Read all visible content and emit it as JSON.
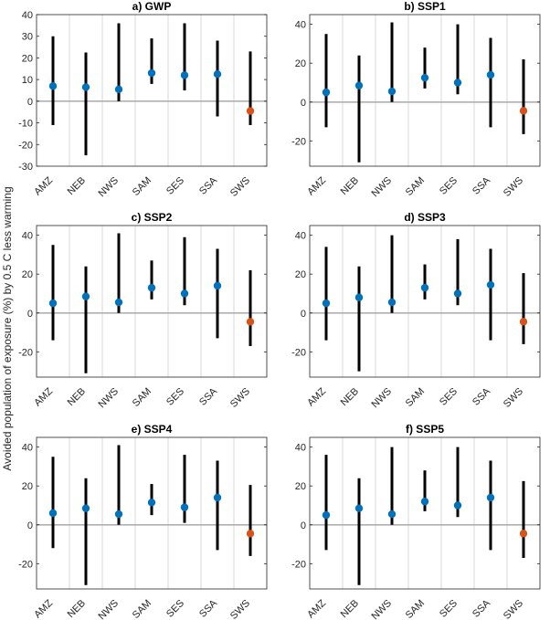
{
  "ylabel": "Avoided population of exposure (%) by 0.5 C less warming",
  "colors": {
    "point": "#0072BD",
    "highlight": "#D95319",
    "whisker": "#000000",
    "zero": "#B0B0B0",
    "grid": "#D9D9D9",
    "axis": "#262626"
  },
  "chart_data": [
    {
      "type": "errorbar",
      "title": "a) GWP",
      "categories": [
        "AMZ",
        "NEB",
        "NWS",
        "SAM",
        "SES",
        "SSA",
        "SWS"
      ],
      "values": [
        7,
        6.5,
        5.5,
        13,
        12,
        12.5,
        -4.5
      ],
      "lower": [
        -11,
        -25,
        0,
        8,
        5,
        -7,
        -11
      ],
      "upper": [
        30,
        22.5,
        36,
        29,
        36,
        28,
        23
      ],
      "ylim": [
        -30,
        40
      ],
      "yticks": [
        -30,
        -20,
        -10,
        0,
        10,
        20,
        30,
        40
      ]
    },
    {
      "type": "errorbar",
      "title": "b) SSP1",
      "categories": [
        "AMZ",
        "NEB",
        "NWS",
        "SAM",
        "SES",
        "SSA",
        "SWS"
      ],
      "values": [
        5,
        8.5,
        5.5,
        12.5,
        10,
        14,
        -4.5
      ],
      "lower": [
        -13,
        -31,
        0,
        7,
        4,
        -13,
        -16.5
      ],
      "upper": [
        35,
        24,
        41,
        28,
        40,
        33,
        22
      ],
      "ylim": [
        -33,
        45
      ],
      "yticks": [
        -20,
        0,
        20,
        40
      ]
    },
    {
      "type": "errorbar",
      "title": "c) SSP2",
      "categories": [
        "AMZ",
        "NEB",
        "NWS",
        "SAM",
        "SES",
        "SSA",
        "SWS"
      ],
      "values": [
        5,
        8.5,
        5.5,
        13,
        10,
        14,
        -4.5
      ],
      "lower": [
        -14,
        -31,
        0,
        7,
        4,
        -13,
        -17
      ],
      "upper": [
        35,
        24,
        41,
        27,
        39,
        33,
        22
      ],
      "ylim": [
        -33,
        45
      ],
      "yticks": [
        -20,
        0,
        20,
        40
      ]
    },
    {
      "type": "errorbar",
      "title": "d) SSP3",
      "categories": [
        "AMZ",
        "NEB",
        "NWS",
        "SAM",
        "SES",
        "SSA",
        "SWS"
      ],
      "values": [
        5,
        8,
        5.5,
        13,
        10,
        14.5,
        -4.5
      ],
      "lower": [
        -14,
        -30,
        0,
        7,
        4,
        -14,
        -16
      ],
      "upper": [
        34,
        24,
        40,
        25,
        38,
        33,
        20.5
      ],
      "ylim": [
        -33,
        45
      ],
      "yticks": [
        -20,
        0,
        20,
        40
      ]
    },
    {
      "type": "errorbar",
      "title": "e) SSP4",
      "categories": [
        "AMZ",
        "NEB",
        "NWS",
        "SAM",
        "SES",
        "SSA",
        "SWS"
      ],
      "values": [
        6,
        8.5,
        5.5,
        11.5,
        9,
        14,
        -4.5
      ],
      "lower": [
        -12,
        -31,
        0,
        5,
        1,
        -13,
        -16
      ],
      "upper": [
        35,
        24,
        41,
        21,
        36,
        33,
        20.5
      ],
      "ylim": [
        -33,
        45
      ],
      "yticks": [
        -20,
        0,
        20,
        40
      ]
    },
    {
      "type": "errorbar",
      "title": "f) SSP5",
      "categories": [
        "AMZ",
        "NEB",
        "NWS",
        "SAM",
        "SES",
        "SSA",
        "SWS"
      ],
      "values": [
        5,
        8.5,
        5.5,
        12,
        10,
        14,
        -4.5
      ],
      "lower": [
        -13,
        -31,
        0,
        7,
        4,
        -13,
        -17
      ],
      "upper": [
        36,
        24,
        40,
        28,
        40,
        33,
        22.5
      ],
      "ylim": [
        -33,
        45
      ],
      "yticks": [
        -20,
        0,
        20,
        40
      ]
    }
  ]
}
